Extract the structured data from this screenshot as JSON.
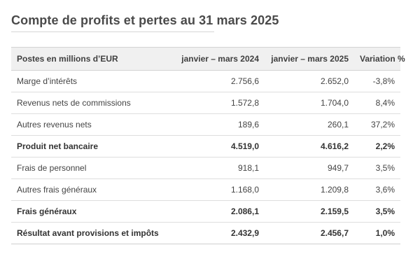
{
  "title": "Compte de profits et pertes au 31 mars 2025",
  "table": {
    "headers": [
      "Postes en millions d’EUR",
      "janvier – mars 2024",
      "janvier – mars 2025",
      "Variation %"
    ],
    "rows": [
      {
        "label": "Marge d’intérêts",
        "v2024": "2.756,6",
        "v2025": "2.652,0",
        "change": "-3,8%",
        "bold": false
      },
      {
        "label": "Revenus nets de commissions",
        "v2024": "1.572,8",
        "v2025": "1.704,0",
        "change": "8,4%",
        "bold": false
      },
      {
        "label": "Autres revenus nets",
        "v2024": "189,6",
        "v2025": "260,1",
        "change": "37,2%",
        "bold": false
      },
      {
        "label": "Produit net bancaire",
        "v2024": "4.519,0",
        "v2025": "4.616,2",
        "change": "2,2%",
        "bold": true
      },
      {
        "label": "Frais de personnel",
        "v2024": "918,1",
        "v2025": "949,7",
        "change": "3,5%",
        "bold": false
      },
      {
        "label": "Autres frais généraux",
        "v2024": "1.168,0",
        "v2025": "1.209,8",
        "change": "3,6%",
        "bold": false
      },
      {
        "label": "Frais généraux",
        "v2024": "2.086,1",
        "v2025": "2.159,5",
        "change": "3,5%",
        "bold": true
      },
      {
        "label": "Résultat avant provisions et impôts",
        "v2024": "2.432,9",
        "v2025": "2.456,7",
        "change": "1,0%",
        "bold": true
      }
    ]
  }
}
